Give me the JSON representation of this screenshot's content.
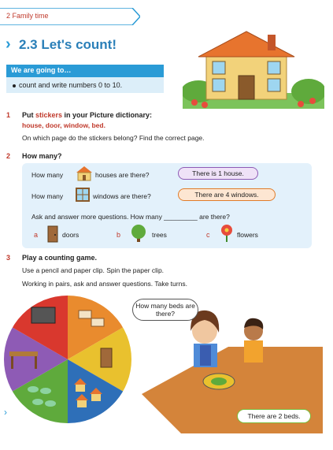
{
  "header": {
    "text": "2  Family time"
  },
  "title": {
    "text": "2.3  Let's count!"
  },
  "goals": {
    "heading": "We are going to…",
    "item": "count and write numbers 0 to 10."
  },
  "section1": {
    "num": "1",
    "heading_a": "Put ",
    "heading_red": "stickers",
    "heading_b": " in your Picture dictionary:",
    "words": "house, door, window, bed.",
    "question": "On which page do the stickers belong? Find the correct page."
  },
  "section2": {
    "num": "2",
    "heading": "How many?",
    "row1_a": "How many",
    "row1_b": "houses are there?",
    "row1_answer": "There is 1 house.",
    "row2_a": "How many",
    "row2_b": "windows are there?",
    "row2_answer": "There are 4 windows.",
    "row3": "Ask and answer more questions. How many _________ are there?",
    "options": [
      {
        "letter": "a",
        "label": "doors"
      },
      {
        "letter": "b",
        "label": "trees"
      },
      {
        "letter": "c",
        "label": "flowers"
      }
    ]
  },
  "section3": {
    "num": "3",
    "heading": "Play a counting game.",
    "line1": "Use a pencil and paper clip. Spin the paper clip.",
    "line2": "Working in pairs, ask and answer questions. Take turns."
  },
  "scene": {
    "bubble_girl": "How many beds are there?",
    "bubble_boy": "There are 2 beds."
  },
  "colors": {
    "accent": "#2a9bd6",
    "red": "#c0392b"
  }
}
